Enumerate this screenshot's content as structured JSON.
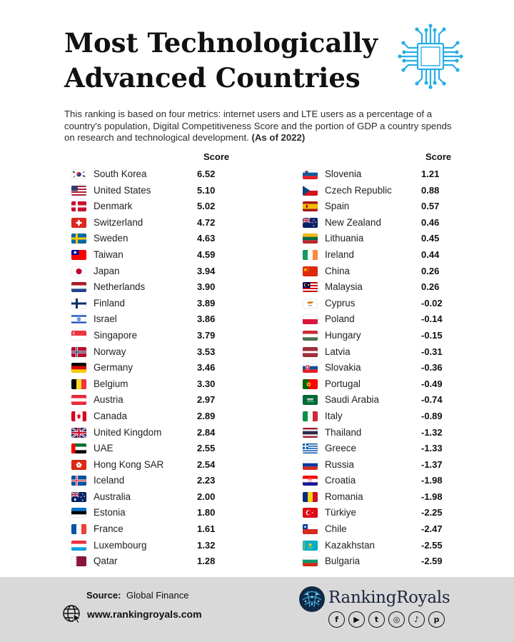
{
  "header": {
    "title_line1": "Most Technologically",
    "title_line2": "Advanced Countries",
    "subtitle": "This ranking is based on four metrics: internet users and LTE users as a percentage of a country's population, Digital Competitiveness Score and the portion of GDP a country spends on research and technological development.",
    "as_of": "(As of 2022)",
    "icon": "microchip-icon"
  },
  "chart_data": {
    "type": "table",
    "column_header": "Score",
    "columns": [
      {
        "rows": [
          {
            "country": "South Korea",
            "score": "6.52",
            "flag": "kr"
          },
          {
            "country": "United States",
            "score": "5.10",
            "flag": "us"
          },
          {
            "country": "Denmark",
            "score": "5.02",
            "flag": "dk"
          },
          {
            "country": "Switzerland",
            "score": "4.72",
            "flag": "ch"
          },
          {
            "country": "Sweden",
            "score": "4.63",
            "flag": "se"
          },
          {
            "country": "Taiwan",
            "score": "4.59",
            "flag": "tw"
          },
          {
            "country": "Japan",
            "score": "3.94",
            "flag": "jp"
          },
          {
            "country": "Netherlands",
            "score": "3.90",
            "flag": "nl"
          },
          {
            "country": "Finland",
            "score": "3.89",
            "flag": "fi"
          },
          {
            "country": "Israel",
            "score": "3.86",
            "flag": "il"
          },
          {
            "country": "Singapore",
            "score": "3.79",
            "flag": "sg"
          },
          {
            "country": "Norway",
            "score": "3.53",
            "flag": "no"
          },
          {
            "country": "Germany",
            "score": "3.46",
            "flag": "de"
          },
          {
            "country": "Belgium",
            "score": "3.30",
            "flag": "be"
          },
          {
            "country": "Austria",
            "score": "2.97",
            "flag": "at"
          },
          {
            "country": "Canada",
            "score": "2.89",
            "flag": "ca"
          },
          {
            "country": "United Kingdom",
            "score": "2.84",
            "flag": "gb"
          },
          {
            "country": "UAE",
            "score": "2.55",
            "flag": "ae"
          },
          {
            "country": "Hong Kong SAR",
            "score": "2.54",
            "flag": "hk"
          },
          {
            "country": "Iceland",
            "score": "2.23",
            "flag": "is"
          },
          {
            "country": "Australia",
            "score": "2.00",
            "flag": "au"
          },
          {
            "country": "Estonia",
            "score": "1.80",
            "flag": "ee"
          },
          {
            "country": "France",
            "score": "1.61",
            "flag": "fr"
          },
          {
            "country": "Luxembourg",
            "score": "1.32",
            "flag": "lu"
          },
          {
            "country": "Qatar",
            "score": "1.28",
            "flag": "qa"
          }
        ]
      },
      {
        "rows": [
          {
            "country": "Slovenia",
            "score": "1.21",
            "flag": "si"
          },
          {
            "country": "Czech Republic",
            "score": "0.88",
            "flag": "cz"
          },
          {
            "country": "Spain",
            "score": "0.57",
            "flag": "es"
          },
          {
            "country": "New Zealand",
            "score": "0.46",
            "flag": "nz"
          },
          {
            "country": "Lithuania",
            "score": "0.45",
            "flag": "lt"
          },
          {
            "country": "Ireland",
            "score": "0.44",
            "flag": "ie"
          },
          {
            "country": "China",
            "score": "0.26",
            "flag": "cn"
          },
          {
            "country": "Malaysia",
            "score": "0.26",
            "flag": "my"
          },
          {
            "country": "Cyprus",
            "score": "-0.02",
            "flag": "cy"
          },
          {
            "country": "Poland",
            "score": "-0.14",
            "flag": "pl"
          },
          {
            "country": "Hungary",
            "score": "-0.15",
            "flag": "hu"
          },
          {
            "country": "Latvia",
            "score": "-0.31",
            "flag": "lv"
          },
          {
            "country": "Slovakia",
            "score": "-0.36",
            "flag": "sk"
          },
          {
            "country": "Portugal",
            "score": "-0.49",
            "flag": "pt"
          },
          {
            "country": "Saudi Arabia",
            "score": "-0.74",
            "flag": "sa"
          },
          {
            "country": "Italy",
            "score": "-0.89",
            "flag": "it"
          },
          {
            "country": "Thailand",
            "score": "-1.32",
            "flag": "th"
          },
          {
            "country": "Greece",
            "score": "-1.33",
            "flag": "gr"
          },
          {
            "country": "Russia",
            "score": "-1.37",
            "flag": "ru"
          },
          {
            "country": "Croatia",
            "score": "-1.98",
            "flag": "hr"
          },
          {
            "country": "Romania",
            "score": "-1.98",
            "flag": "ro"
          },
          {
            "country": "Türkiye",
            "score": "-2.25",
            "flag": "tr"
          },
          {
            "country": "Chile",
            "score": "-2.47",
            "flag": "cl"
          },
          {
            "country": "Kazakhstan",
            "score": "-2.55",
            "flag": "kz"
          },
          {
            "country": "Bulgaria",
            "score": "-2.59",
            "flag": "bg"
          }
        ]
      }
    ]
  },
  "footer": {
    "source_label": "Source:",
    "source_value": "Global Finance",
    "website": "www.rankingroyals.com",
    "brand": "RankingRoyals",
    "socials": [
      {
        "icon": "facebook-icon",
        "glyph": "f"
      },
      {
        "icon": "youtube-icon",
        "glyph": "▶"
      },
      {
        "icon": "twitter-icon",
        "glyph": "t"
      },
      {
        "icon": "instagram-icon",
        "glyph": "◎"
      },
      {
        "icon": "tiktok-icon",
        "glyph": "♪"
      },
      {
        "icon": "pinterest-icon",
        "glyph": "p"
      }
    ]
  },
  "colors": {
    "footer_bg": "#d9d9d9",
    "title": "#111111",
    "chip_icon": "#29aee6"
  }
}
